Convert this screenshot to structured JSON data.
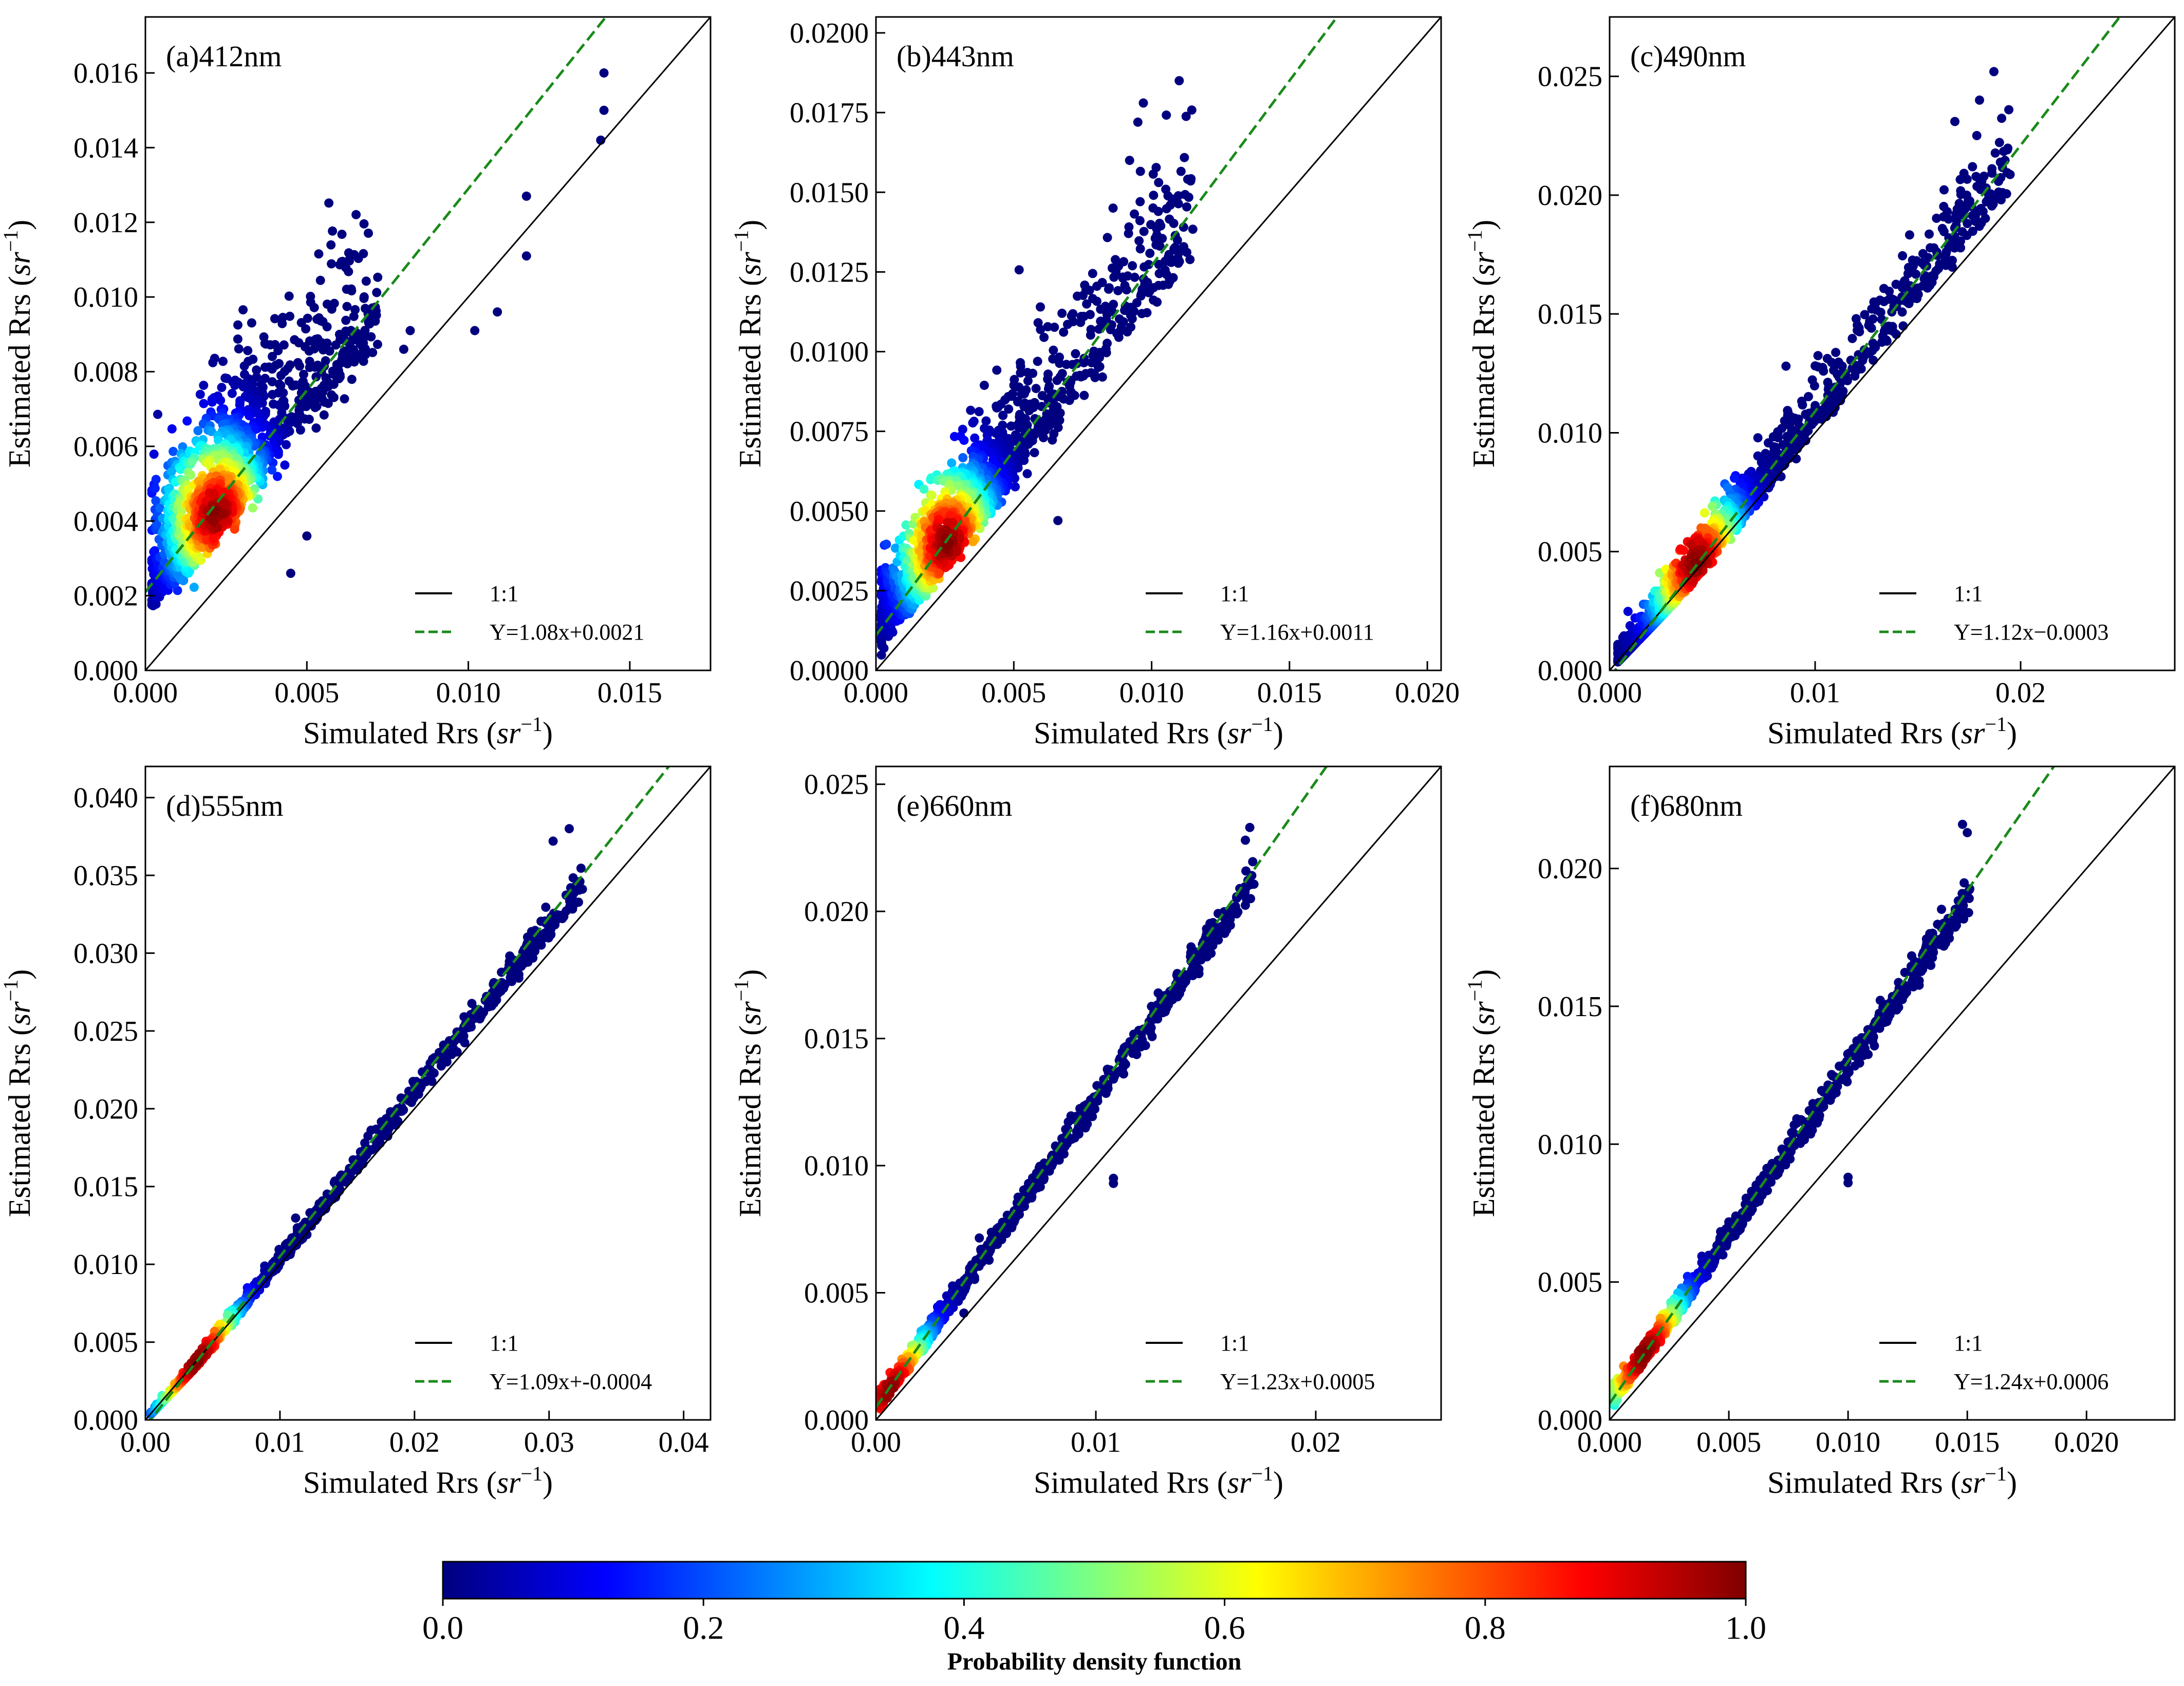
{
  "figure": {
    "colorbar": {
      "label": "Probability density function",
      "ticks": [
        0.0,
        0.2,
        0.4,
        0.6,
        0.8,
        1.0
      ],
      "tick_labels": [
        "0.0",
        "0.2",
        "0.4",
        "0.6",
        "0.8",
        "1.0"
      ],
      "colormap": [
        "#00007f",
        "#0000ff",
        "#007fff",
        "#00ffff",
        "#7fff7f",
        "#ffff00",
        "#ff7f00",
        "#ff0000",
        "#7f0000"
      ]
    }
  },
  "chart_data": [
    {
      "type": "scatter",
      "panel": "(a)412nm",
      "xlabel": "Simulated Rrs (sr-1)",
      "ylabel": "Estimated Rrs (sr-1)",
      "xlabel_text": "Simulated Rrs",
      "ylabel_text": "Estimated Rrs",
      "unit_base": "sr",
      "unit_exp": "−1",
      "xlim": [
        0,
        0.0175
      ],
      "ylim": [
        0,
        0.0175
      ],
      "xticks": [
        0.0,
        0.005,
        0.01,
        0.015
      ],
      "xtick_labels": [
        "0.000",
        "0.005",
        "0.010",
        "0.015"
      ],
      "yticks": [
        0.0,
        0.002,
        0.004,
        0.006,
        0.008,
        0.01,
        0.012,
        0.014,
        0.016
      ],
      "ytick_labels": [
        "0.000",
        "0.002",
        "0.004",
        "0.006",
        "0.008",
        "0.010",
        "0.012",
        "0.014",
        "0.016"
      ],
      "fit": {
        "slope": 1.08,
        "intercept": 0.0021
      },
      "legend": [
        "1:1",
        "Y=1.08x+0.0021"
      ],
      "cloud": {
        "x_range": [
          0.0002,
          0.0072
        ],
        "peak": [
          0.0022,
          0.0042
        ],
        "upper_spread": 0.9,
        "lower_spread": 0.25
      },
      "outliers": [
        [
          0.0142,
          0.016
        ],
        [
          0.0142,
          0.015
        ],
        [
          0.0141,
          0.0142
        ],
        [
          0.0118,
          0.0127
        ],
        [
          0.0118,
          0.0111
        ],
        [
          0.0109,
          0.0096
        ],
        [
          0.0102,
          0.0091
        ],
        [
          0.0082,
          0.0091
        ],
        [
          0.008,
          0.0086
        ],
        [
          0.0045,
          0.0026
        ],
        [
          0.005,
          0.0036
        ]
      ]
    },
    {
      "type": "scatter",
      "panel": "(b)443nm",
      "xlabel": "Simulated Rrs (sr-1)",
      "ylabel": "Estimated Rrs (sr-1)",
      "xlabel_text": "Simulated Rrs",
      "ylabel_text": "Estimated Rrs",
      "unit_base": "sr",
      "unit_exp": "−1",
      "xlim": [
        0,
        0.0205
      ],
      "ylim": [
        0,
        0.0205
      ],
      "xticks": [
        0.0,
        0.005,
        0.01,
        0.015,
        0.02
      ],
      "xtick_labels": [
        "0.000",
        "0.005",
        "0.010",
        "0.015",
        "0.020"
      ],
      "yticks": [
        0.0,
        0.0025,
        0.005,
        0.0075,
        0.01,
        0.0125,
        0.015,
        0.0175,
        0.02
      ],
      "ytick_labels": [
        "0.0000",
        "0.0025",
        "0.0050",
        "0.0075",
        "0.0100",
        "0.0125",
        "0.0150",
        "0.0175",
        "0.0200"
      ],
      "fit": {
        "slope": 1.16,
        "intercept": 0.0011
      },
      "legend": [
        "1:1",
        "Y=1.16x+0.0011"
      ],
      "cloud": {
        "x_range": [
          0.0002,
          0.0115
        ],
        "peak": [
          0.0026,
          0.004
        ],
        "upper_spread": 0.65,
        "lower_spread": 0.22
      },
      "outliers": [
        [
          0.011,
          0.0185
        ],
        [
          0.0097,
          0.0178
        ],
        [
          0.0095,
          0.0172
        ],
        [
          0.0066,
          0.0047
        ],
        [
          0.0092,
          0.016
        ]
      ]
    },
    {
      "type": "scatter",
      "panel": "(c)490nm",
      "xlabel": "Simulated Rrs (sr-1)",
      "ylabel": "Estimated Rrs (sr-1)",
      "xlabel_text": "Simulated Rrs",
      "ylabel_text": "Estimated Rrs",
      "unit_base": "sr",
      "unit_exp": "−1",
      "xlim": [
        0,
        0.0275
      ],
      "ylim": [
        0,
        0.0275
      ],
      "xticks": [
        0.0,
        0.01,
        0.02
      ],
      "xtick_labels": [
        "0.000",
        "0.01",
        "0.02"
      ],
      "yticks": [
        0.0,
        0.005,
        0.01,
        0.015,
        0.02,
        0.025
      ],
      "ytick_labels": [
        "0.000",
        "0.005",
        "0.010",
        "0.015",
        "0.020",
        "0.025"
      ],
      "fit": {
        "slope": 1.12,
        "intercept": -0.0003
      },
      "legend": [
        "1:1",
        "Y=1.12x−0.0003"
      ],
      "cloud": {
        "x_range": [
          0.0004,
          0.0195
        ],
        "peak": [
          0.0042,
          0.0046
        ],
        "upper_spread": 0.35,
        "lower_spread": 0.12
      },
      "outliers": [
        [
          0.0187,
          0.0252
        ],
        [
          0.018,
          0.024
        ],
        [
          0.0168,
          0.0231
        ]
      ]
    },
    {
      "type": "scatter",
      "panel": "(d)555nm",
      "xlabel": "Simulated Rrs (sr-1)",
      "ylabel": "Estimated Rrs (sr-1)",
      "xlabel_text": "Simulated Rrs",
      "ylabel_text": "Estimated Rrs",
      "unit_base": "sr",
      "unit_exp": "−1",
      "xlim": [
        0,
        0.042
      ],
      "ylim": [
        0,
        0.042
      ],
      "xticks": [
        0.0,
        0.01,
        0.02,
        0.03,
        0.04
      ],
      "xtick_labels": [
        "0.00",
        "0.01",
        "0.02",
        "0.03",
        "0.04"
      ],
      "yticks": [
        0.0,
        0.005,
        0.01,
        0.015,
        0.02,
        0.025,
        0.03,
        0.035,
        0.04
      ],
      "ytick_labels": [
        "0.000",
        "0.005",
        "0.010",
        "0.015",
        "0.020",
        "0.025",
        "0.030",
        "0.035",
        "0.040"
      ],
      "fit": {
        "slope": 1.09,
        "intercept": -0.0004
      },
      "legend": [
        "1:1",
        "Y=1.09x+-0.0004"
      ],
      "cloud": {
        "x_range": [
          0.0004,
          0.0325
        ],
        "peak": [
          0.0038,
          0.004
        ],
        "upper_spread": 0.12,
        "lower_spread": 0.07
      },
      "outliers": [
        [
          0.0315,
          0.038
        ],
        [
          0.0303,
          0.0372
        ]
      ]
    },
    {
      "type": "scatter",
      "panel": "(e)660nm",
      "xlabel": "Simulated Rrs (sr-1)",
      "ylabel": "Estimated Rrs (sr-1)",
      "xlabel_text": "Simulated Rrs",
      "ylabel_text": "Estimated Rrs",
      "unit_base": "sr",
      "unit_exp": "−1",
      "xlim": [
        0,
        0.0257
      ],
      "ylim": [
        0,
        0.0257
      ],
      "xticks": [
        0.0,
        0.01,
        0.02
      ],
      "xtick_labels": [
        "0.00",
        "0.01",
        "0.02"
      ],
      "yticks": [
        0.0,
        0.005,
        0.01,
        0.015,
        0.02,
        0.025
      ],
      "ytick_labels": [
        "0.000",
        "0.005",
        "0.010",
        "0.015",
        "0.020",
        "0.025"
      ],
      "fit": {
        "slope": 1.23,
        "intercept": 0.0005
      },
      "legend": [
        "1:1",
        "Y=1.23x+0.0005"
      ],
      "cloud": {
        "x_range": [
          0.0002,
          0.0172
        ],
        "peak": [
          0.0008,
          0.001
        ],
        "upper_spread": 0.12,
        "lower_spread": 0.08
      },
      "outliers": [
        [
          0.0108,
          0.0093
        ],
        [
          0.0108,
          0.0095
        ],
        [
          0.017,
          0.0233
        ],
        [
          0.0168,
          0.0228
        ],
        [
          0.004,
          0.0042
        ]
      ]
    },
    {
      "type": "scatter",
      "panel": "(f)680nm",
      "xlabel": "Simulated Rrs (sr-1)",
      "ylabel": "Estimated Rrs (sr-1)",
      "xlabel_text": "Simulated Rrs",
      "ylabel_text": "Estimated Rrs",
      "unit_base": "sr",
      "unit_exp": "−1",
      "xlim": [
        0,
        0.0237
      ],
      "ylim": [
        0,
        0.0237
      ],
      "xticks": [
        0.0,
        0.005,
        0.01,
        0.015,
        0.02
      ],
      "xtick_labels": [
        "0.000",
        "0.005",
        "0.010",
        "0.015",
        "0.020"
      ],
      "yticks": [
        0.0,
        0.005,
        0.01,
        0.015,
        0.02
      ],
      "ytick_labels": [
        "0.000",
        "0.005",
        "0.010",
        "0.015",
        "0.020"
      ],
      "fit": {
        "slope": 1.24,
        "intercept": 0.0006
      },
      "legend": [
        "1:1",
        "Y=1.24x+0.0006"
      ],
      "cloud": {
        "x_range": [
          0.0002,
          0.0152
        ],
        "peak": [
          0.0015,
          0.0024
        ],
        "upper_spread": 0.13,
        "lower_spread": 0.08
      },
      "outliers": [
        [
          0.01,
          0.0086
        ],
        [
          0.01,
          0.0088
        ],
        [
          0.0148,
          0.0216
        ],
        [
          0.015,
          0.0213
        ]
      ]
    }
  ]
}
